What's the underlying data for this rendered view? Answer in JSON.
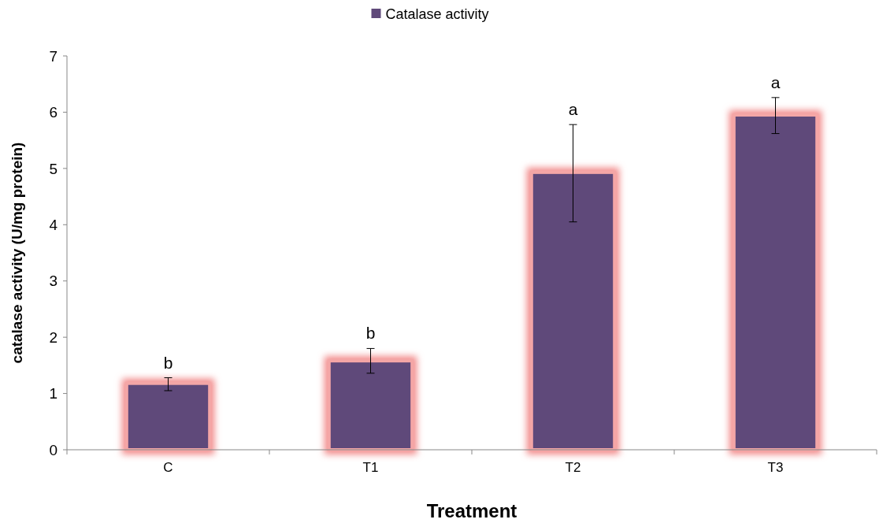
{
  "chart_data": {
    "type": "bar",
    "xlabel": "Treatment",
    "ylabel": "catalase activity (U/mg protein)",
    "categories": [
      "C",
      "T1",
      "T2",
      "T3"
    ],
    "series": [
      {
        "name": "Catalase activity",
        "color": "#5f497a",
        "values": [
          1.18,
          1.58,
          4.93,
          5.95
        ],
        "errors": [
          [
            1.05,
            1.28
          ],
          [
            1.36,
            1.8
          ],
          [
            4.05,
            5.78
          ],
          [
            5.62,
            6.26
          ]
        ]
      }
    ],
    "ylim": [
      0,
      7
    ],
    "yticks": [
      0,
      1,
      2,
      3,
      4,
      5,
      6,
      7
    ],
    "grid": false,
    "legend": "top",
    "annotations": [
      "b",
      "b",
      "a",
      "a"
    ]
  }
}
